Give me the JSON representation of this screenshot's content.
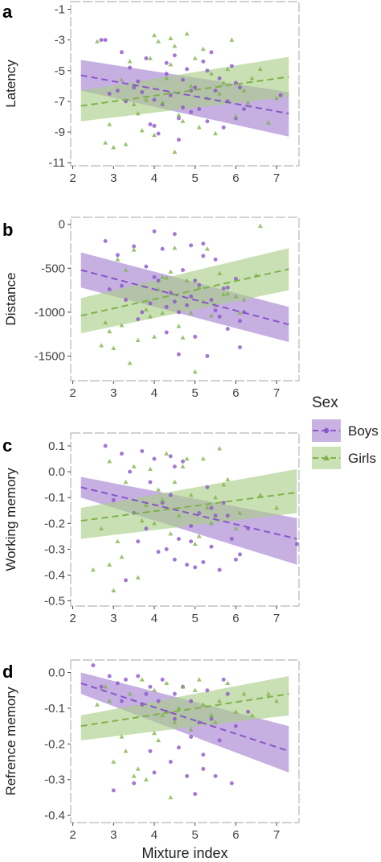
{
  "colors": {
    "boys": "#8a55c9",
    "girls": "#7fb24a",
    "boys_band": "#a37fd0",
    "girls_band": "#a8cd86",
    "axis": "#333333"
  },
  "legend": {
    "title": "Sex",
    "items": [
      {
        "label": "Boys",
        "series": "boys"
      },
      {
        "label": "Girls",
        "series": "girls"
      }
    ]
  },
  "shared_x": {
    "label": "Mixture index",
    "ticks": [
      2,
      3,
      4,
      5,
      6,
      7
    ],
    "range": [
      1.95,
      7.55
    ]
  },
  "chart_data": [
    {
      "panel": "a",
      "type": "scatter",
      "ylabel": "Latency",
      "xlim": [
        1.95,
        7.55
      ],
      "ylim": [
        -11.2,
        -0.5
      ],
      "xticks": [
        2,
        3,
        4,
        5,
        6,
        7
      ],
      "yticks": [
        -1,
        -3,
        -5,
        -7,
        -9,
        -11
      ],
      "grid": false,
      "legend": "right",
      "trend": [
        {
          "series": "Boys",
          "x": [
            2.2,
            7.3
          ],
          "y": [
            -5.3,
            -7.8
          ],
          "band_lower": [
            -6.3,
            -9.3
          ],
          "band_upper": [
            -4.3,
            -6.4
          ]
        },
        {
          "series": "Girls",
          "x": [
            2.2,
            7.3
          ],
          "y": [
            -7.3,
            -5.4
          ],
          "band_lower": [
            -8.3,
            -6.7
          ],
          "band_upper": [
            -6.3,
            -4.1
          ]
        }
      ],
      "series": [
        {
          "name": "Boys",
          "marker": "circle",
          "x": [
            2.7,
            2.8,
            3.1,
            3.3,
            3.4,
            3.5,
            3.7,
            3.9,
            4.0,
            4.1,
            4.2,
            4.3,
            4.4,
            4.5,
            4.6,
            4.7,
            4.8,
            4.9,
            5.0,
            5.1,
            5.2,
            5.3,
            5.5,
            5.6,
            5.8,
            5.9,
            6.0,
            6.1,
            3.2,
            3.6,
            4.0,
            4.3,
            4.6,
            4.9,
            5.3,
            5.7,
            6.2,
            2.9,
            3.8,
            4.7,
            5.4,
            6.0,
            7.1
          ],
          "y": [
            -3.0,
            -3.0,
            -6.3,
            -7.0,
            -4.8,
            -6.1,
            -6.4,
            -8.5,
            -8.6,
            -9.1,
            -7.2,
            -5.2,
            -6.6,
            -4.0,
            -8.1,
            -5.6,
            -4.9,
            -7.7,
            -6.1,
            -7.5,
            -4.4,
            -8.3,
            -6.3,
            -5.5,
            -7.0,
            -4.7,
            -8.1,
            -6.1,
            -3.8,
            -5.7,
            -6.9,
            -4.5,
            -9.5,
            -6.3,
            -5.0,
            -8.7,
            -7.5,
            -6.5,
            -4.2,
            -7.4,
            -3.8,
            -5.8,
            -6.6
          ]
        },
        {
          "name": "Girls",
          "marker": "triangle",
          "x": [
            2.6,
            2.9,
            3.0,
            3.2,
            3.3,
            3.6,
            3.8,
            3.9,
            4.0,
            4.2,
            4.3,
            4.4,
            4.5,
            4.6,
            4.8,
            4.9,
            5.0,
            5.1,
            5.2,
            5.4,
            5.5,
            5.6,
            5.8,
            6.0,
            6.2,
            6.4,
            6.6,
            6.8,
            7.0,
            2.8,
            3.4,
            3.7,
            4.1,
            4.4,
            4.7,
            5.3,
            5.7,
            6.3,
            4.0,
            4.5,
            5.9,
            3.5
          ],
          "y": [
            -3.1,
            -8.5,
            -10.0,
            -5.6,
            -9.8,
            -7.8,
            -6.9,
            -4.2,
            -2.7,
            -7.1,
            -5.5,
            -2.9,
            -10.3,
            -7.9,
            -2.6,
            -6.0,
            -4.2,
            -8.7,
            -3.6,
            -5.2,
            -9.1,
            -6.5,
            -4.9,
            -8.0,
            -6.3,
            -5.5,
            -4.9,
            -8.4,
            -6.8,
            -9.7,
            -4.4,
            -8.9,
            -3.1,
            -4.6,
            -8.3,
            -6.8,
            -5.8,
            -7.1,
            -9.2,
            -3.4,
            -3.0,
            -7.2
          ]
        }
      ]
    },
    {
      "panel": "b",
      "type": "scatter",
      "ylabel": "Distance",
      "xlim": [
        1.95,
        7.55
      ],
      "ylim": [
        -1780,
        80
      ],
      "xticks": [
        2,
        3,
        4,
        5,
        6,
        7
      ],
      "yticks": [
        0,
        -500,
        -1000,
        -1500
      ],
      "grid": false,
      "legend": "right",
      "trend": [
        {
          "series": "Boys",
          "x": [
            2.2,
            7.3
          ],
          "y": [
            -520,
            -1140
          ],
          "band_lower": [
            -720,
            -1340
          ],
          "band_upper": [
            -320,
            -940
          ]
        },
        {
          "series": "Girls",
          "x": [
            2.2,
            7.3
          ],
          "y": [
            -1040,
            -510
          ],
          "band_lower": [
            -1240,
            -750
          ],
          "band_upper": [
            -840,
            -270
          ]
        }
      ],
      "series": [
        {
          "name": "Boys",
          "marker": "circle",
          "x": [
            2.8,
            3.1,
            3.3,
            3.5,
            3.6,
            3.8,
            3.9,
            4.0,
            4.1,
            4.2,
            4.3,
            4.4,
            4.5,
            4.6,
            4.7,
            4.8,
            4.9,
            5.0,
            5.1,
            5.2,
            5.3,
            5.4,
            5.5,
            5.6,
            5.7,
            5.8,
            6.0,
            6.1,
            3.2,
            3.7,
            4.0,
            4.3,
            4.6,
            4.9,
            5.2,
            5.5,
            5.8,
            6.2,
            2.9,
            4.5,
            5.0,
            6.1
          ],
          "y": [
            -190,
            -350,
            -860,
            -250,
            -1080,
            -480,
            -900,
            -80,
            -640,
            -280,
            -1230,
            -780,
            -110,
            -1000,
            -520,
            -920,
            -240,
            -1280,
            -690,
            -220,
            -1500,
            -860,
            -400,
            -1050,
            -730,
            -1190,
            -620,
            -1400,
            -700,
            -1000,
            -600,
            -940,
            -1480,
            -820,
            -360,
            -980,
            -720,
            -1000,
            -740,
            -880,
            -640,
            -1100
          ]
        },
        {
          "name": "Girls",
          "marker": "triangle",
          "x": [
            2.7,
            2.9,
            3.0,
            3.2,
            3.4,
            3.5,
            3.6,
            3.8,
            4.0,
            4.1,
            4.2,
            4.4,
            4.5,
            4.6,
            4.8,
            4.9,
            5.0,
            5.1,
            5.3,
            5.4,
            5.6,
            5.8,
            6.0,
            6.2,
            6.5,
            6.6,
            3.3,
            3.9,
            4.3,
            4.7,
            5.2,
            5.7,
            6.1,
            2.8,
            4.2,
            5.5,
            3.1
          ],
          "y": [
            -1380,
            -1220,
            -1410,
            -1150,
            -1580,
            -290,
            -1320,
            -970,
            -1280,
            -740,
            -1010,
            -540,
            -270,
            -1160,
            -640,
            -1010,
            -1680,
            -720,
            -280,
            -1040,
            -560,
            -790,
            -820,
            -860,
            -580,
            -20,
            -520,
            -1050,
            -610,
            -1290,
            -880,
            -800,
            -1010,
            -1120,
            -600,
            -920,
            -400
          ]
        }
      ]
    },
    {
      "panel": "c",
      "type": "scatter",
      "ylabel": "Working memory",
      "xlim": [
        1.95,
        7.55
      ],
      "ylim": [
        -0.52,
        0.15
      ],
      "xticks": [
        2,
        3,
        4,
        5,
        6,
        7
      ],
      "yticks": [
        0.1,
        0.0,
        -0.1,
        -0.2,
        -0.3,
        -0.4,
        -0.5
      ],
      "grid": false,
      "legend": "right",
      "trend": [
        {
          "series": "Boys",
          "x": [
            2.2,
            7.5
          ],
          "y": [
            -0.06,
            -0.26
          ],
          "band_lower": [
            -0.1,
            -0.36
          ],
          "band_upper": [
            -0.02,
            -0.18
          ]
        },
        {
          "series": "Girls",
          "x": [
            2.2,
            7.5
          ],
          "y": [
            -0.19,
            -0.08
          ],
          "band_lower": [
            -0.26,
            -0.16
          ],
          "band_upper": [
            -0.14,
            0.01
          ]
        }
      ],
      "series": [
        {
          "name": "Boys",
          "marker": "circle",
          "x": [
            2.8,
            3.0,
            3.2,
            3.4,
            3.5,
            3.7,
            3.8,
            3.9,
            4.0,
            4.1,
            4.2,
            4.3,
            4.4,
            4.5,
            4.6,
            4.7,
            4.8,
            4.9,
            5.0,
            5.1,
            5.2,
            5.3,
            5.4,
            5.5,
            5.6,
            5.7,
            5.9,
            6.1,
            6.3,
            7.5,
            3.6,
            4.4,
            4.9,
            5.4,
            5.8,
            6.0,
            3.3,
            4.5
          ],
          "y": [
            0.1,
            -0.11,
            0.07,
            0.0,
            -0.16,
            0.08,
            -0.22,
            -0.04,
            0.05,
            -0.31,
            -0.12,
            -0.3,
            0.06,
            -0.34,
            -0.26,
            0.04,
            -0.36,
            -0.27,
            -0.37,
            -0.16,
            -0.35,
            -0.06,
            -0.29,
            -0.17,
            -0.38,
            -0.12,
            -0.26,
            -0.32,
            -0.22,
            -0.28,
            -0.27,
            -0.09,
            -0.21,
            -0.14,
            -0.17,
            -0.34,
            -0.42,
            0.02
          ]
        },
        {
          "name": "Girls",
          "marker": "triangle",
          "x": [
            2.5,
            2.7,
            2.9,
            3.0,
            3.1,
            3.3,
            3.5,
            3.6,
            3.8,
            3.9,
            4.0,
            4.2,
            4.3,
            4.5,
            4.6,
            4.8,
            4.9,
            5.0,
            5.2,
            5.3,
            5.5,
            5.6,
            5.8,
            6.0,
            6.1,
            6.6,
            7.0,
            3.2,
            3.7,
            4.1,
            4.7,
            5.1,
            5.7,
            2.9,
            4.4,
            5.4
          ],
          "y": [
            -0.38,
            -0.22,
            0.04,
            -0.46,
            -0.27,
            -0.04,
            0.02,
            -0.41,
            -0.13,
            0.01,
            -0.2,
            -0.11,
            0.07,
            -0.04,
            -0.17,
            0.05,
            -0.09,
            -0.28,
            0.05,
            -0.14,
            -0.1,
            0.09,
            -0.03,
            -0.22,
            -0.16,
            -0.09,
            -0.14,
            -0.33,
            -0.19,
            -0.07,
            0.02,
            -0.25,
            -0.05,
            -0.36,
            -0.24,
            -0.2
          ]
        }
      ]
    },
    {
      "panel": "d",
      "type": "scatter",
      "ylabel": "Refrence memory",
      "xlim": [
        1.95,
        7.55
      ],
      "ylim": [
        -0.42,
        0.035
      ],
      "xticks": [
        2,
        3,
        4,
        5,
        6,
        7
      ],
      "yticks": [
        0.0,
        -0.1,
        -0.2,
        -0.3,
        -0.4
      ],
      "grid": false,
      "legend": "right",
      "trend": [
        {
          "series": "Boys",
          "x": [
            2.2,
            7.3
          ],
          "y": [
            -0.03,
            -0.22
          ],
          "band_lower": [
            -0.06,
            -0.28
          ],
          "band_upper": [
            0.0,
            -0.15
          ]
        },
        {
          "series": "Girls",
          "x": [
            2.2,
            7.3
          ],
          "y": [
            -0.15,
            -0.06
          ],
          "band_lower": [
            -0.19,
            -0.12
          ],
          "band_upper": [
            -0.12,
            -0.01
          ]
        }
      ],
      "series": [
        {
          "name": "Boys",
          "marker": "circle",
          "x": [
            2.5,
            2.7,
            2.9,
            3.0,
            3.2,
            3.3,
            3.5,
            3.6,
            3.8,
            3.9,
            4.0,
            4.1,
            4.2,
            4.3,
            4.4,
            4.5,
            4.6,
            4.7,
            4.8,
            4.9,
            5.0,
            5.1,
            5.2,
            5.3,
            5.4,
            5.5,
            5.6,
            5.7,
            5.9,
            6.0,
            6.3,
            3.1,
            3.7,
            4.5,
            5.2,
            5.8,
            4.9,
            3.9
          ],
          "y": [
            0.02,
            -0.04,
            -0.01,
            -0.33,
            -0.08,
            -0.02,
            -0.31,
            -0.01,
            -0.06,
            -0.04,
            -0.28,
            -0.08,
            -0.02,
            -0.11,
            -0.25,
            -0.06,
            -0.21,
            -0.04,
            -0.29,
            -0.08,
            -0.34,
            -0.14,
            -0.23,
            -0.05,
            -0.13,
            -0.29,
            -0.19,
            -0.02,
            -0.31,
            -0.15,
            -0.11,
            -0.03,
            -0.09,
            -0.13,
            -0.27,
            -0.06,
            -0.18,
            -0.22
          ]
        },
        {
          "name": "Girls",
          "marker": "triangle",
          "x": [
            2.6,
            2.8,
            3.0,
            3.2,
            3.4,
            3.5,
            3.7,
            3.8,
            4.0,
            4.1,
            4.3,
            4.4,
            4.5,
            4.7,
            4.9,
            5.0,
            5.2,
            5.4,
            5.6,
            5.8,
            6.0,
            6.2,
            6.8,
            7.0,
            3.3,
            3.6,
            4.2,
            4.6,
            5.1,
            5.5,
            6.4,
            2.9,
            4.0
          ],
          "y": [
            -0.09,
            -0.04,
            -0.25,
            -0.18,
            -0.06,
            -0.29,
            -0.02,
            -0.3,
            -0.05,
            -0.19,
            -0.03,
            -0.35,
            -0.14,
            -0.04,
            -0.16,
            -0.05,
            -0.09,
            -0.12,
            -0.08,
            -0.03,
            -0.11,
            -0.06,
            -0.06,
            -0.08,
            -0.22,
            -0.27,
            -0.12,
            -0.1,
            -0.02,
            -0.14,
            -0.12,
            -0.08,
            -0.17
          ]
        }
      ]
    }
  ]
}
